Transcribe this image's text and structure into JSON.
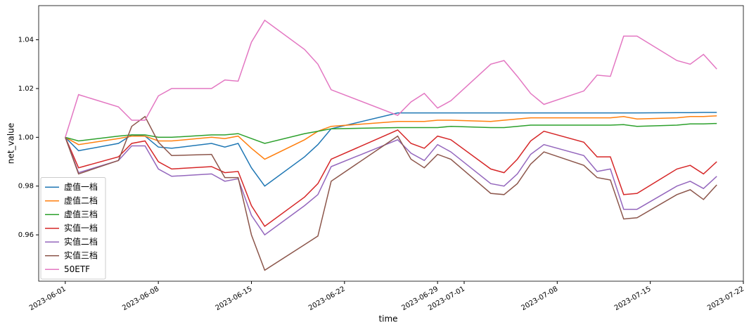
{
  "chart_data": {
    "type": "line",
    "xlabel": "time",
    "ylabel": "net_value",
    "x": [
      "2023-06-01",
      "2023-06-02",
      "2023-06-05",
      "2023-06-06",
      "2023-06-07",
      "2023-06-08",
      "2023-06-09",
      "2023-06-12",
      "2023-06-13",
      "2023-06-14",
      "2023-06-15",
      "2023-06-16",
      "2023-06-19",
      "2023-06-20",
      "2023-06-21",
      "2023-06-26",
      "2023-06-27",
      "2023-06-28",
      "2023-06-29",
      "2023-06-30",
      "2023-07-03",
      "2023-07-04",
      "2023-07-05",
      "2023-07-06",
      "2023-07-07",
      "2023-07-10",
      "2023-07-11",
      "2023-07-12",
      "2023-07-13",
      "2023-07-14",
      "2023-07-17",
      "2023-07-18",
      "2023-07-19",
      "2023-07-20"
    ],
    "series": [
      {
        "name": "虚值一档",
        "color": "#1f77b4",
        "values": [
          1.0,
          0.9945,
          0.9975,
          1.001,
          1.0005,
          0.996,
          0.9955,
          0.9975,
          0.996,
          0.9975,
          0.9875,
          0.98,
          0.992,
          0.997,
          1.0035,
          1.01,
          1.01,
          1.01,
          1.01,
          1.01,
          1.01,
          1.01,
          1.01,
          1.01,
          1.01,
          1.01,
          1.01,
          1.01,
          1.01,
          1.01,
          1.0101,
          1.0101,
          1.0102,
          1.0102
        ]
      },
      {
        "name": "虚值二档",
        "color": "#ff7f0e",
        "values": [
          1.0,
          0.997,
          0.9995,
          1.0005,
          1.0005,
          0.9985,
          0.9985,
          1.0,
          0.9995,
          1.0005,
          0.9955,
          0.991,
          0.999,
          1.0025,
          1.0045,
          1.0065,
          1.0065,
          1.0065,
          1.007,
          1.007,
          1.0065,
          1.007,
          1.0075,
          1.008,
          1.008,
          1.008,
          1.008,
          1.008,
          1.0085,
          1.0075,
          1.008,
          1.0085,
          1.0085,
          1.0088
        ]
      },
      {
        "name": "虚值三档",
        "color": "#2ca02c",
        "values": [
          1.0,
          0.9985,
          1.0005,
          1.001,
          1.001,
          1.0,
          1.0,
          1.001,
          1.001,
          1.0015,
          0.9995,
          0.9975,
          1.0015,
          1.0025,
          1.0035,
          1.004,
          1.004,
          1.004,
          1.004,
          1.0045,
          1.004,
          1.004,
          1.0045,
          1.005,
          1.005,
          1.005,
          1.005,
          1.005,
          1.0052,
          1.0045,
          1.005,
          1.0055,
          1.0055,
          1.0057
        ]
      },
      {
        "name": "实值一档",
        "color": "#d62728",
        "values": [
          1.0,
          0.9875,
          0.992,
          0.9975,
          0.9985,
          0.99,
          0.987,
          0.988,
          0.9855,
          0.986,
          0.972,
          0.9635,
          0.9755,
          0.981,
          0.991,
          1.003,
          0.9975,
          0.9955,
          1.0005,
          0.999,
          0.987,
          0.9855,
          0.991,
          0.9985,
          1.0025,
          0.998,
          0.992,
          0.992,
          0.9765,
          0.977,
          0.987,
          0.9885,
          0.985,
          0.99
        ]
      },
      {
        "name": "实值二档",
        "color": "#9467bd",
        "values": [
          1.0,
          0.9855,
          0.9905,
          0.9965,
          0.9965,
          0.987,
          0.984,
          0.985,
          0.982,
          0.983,
          0.968,
          0.96,
          0.972,
          0.9765,
          0.988,
          0.999,
          0.9935,
          0.9905,
          0.997,
          0.994,
          0.981,
          0.98,
          0.985,
          0.993,
          0.997,
          0.9925,
          0.986,
          0.987,
          0.9705,
          0.9705,
          0.98,
          0.982,
          0.979,
          0.984
        ]
      },
      {
        "name": "实值三档",
        "color": "#8c564b",
        "values": [
          1.0,
          0.985,
          0.9905,
          1.0045,
          1.0085,
          0.998,
          0.9925,
          0.993,
          0.9835,
          0.9835,
          0.96,
          0.9455,
          0.956,
          0.9595,
          0.982,
          1.0005,
          0.991,
          0.9875,
          0.993,
          0.991,
          0.977,
          0.9765,
          0.981,
          0.989,
          0.994,
          0.9885,
          0.9835,
          0.9825,
          0.9665,
          0.967,
          0.9765,
          0.9785,
          0.9745,
          0.9805
        ]
      },
      {
        "name": "50ETF",
        "color": "#e377c2",
        "values": [
          1.0,
          1.0175,
          1.0125,
          1.007,
          1.007,
          1.017,
          1.02,
          1.02,
          1.0235,
          1.023,
          1.039,
          1.048,
          1.036,
          1.03,
          1.0195,
          1.009,
          1.0145,
          1.018,
          1.012,
          1.015,
          1.03,
          1.0315,
          1.025,
          1.018,
          1.0135,
          1.019,
          1.0255,
          1.025,
          1.0415,
          1.0415,
          1.0315,
          1.03,
          1.034,
          1.028
        ]
      }
    ],
    "xlim": [
      "2023-05-30",
      "2023-07-22"
    ],
    "xticks": [
      "2023-06-01",
      "2023-06-08",
      "2023-06-15",
      "2023-06-22",
      "2023-06-29",
      "2023-07-01",
      "2023-07-08",
      "2023-07-15",
      "2023-07-22"
    ],
    "ylim": [
      0.941,
      1.054
    ],
    "yticks": [
      0.96,
      0.98,
      {
        "value": 1.0,
        "label": "1.00"
      },
      1.02,
      1.04
    ],
    "legend": "lower left",
    "grid": false
  }
}
